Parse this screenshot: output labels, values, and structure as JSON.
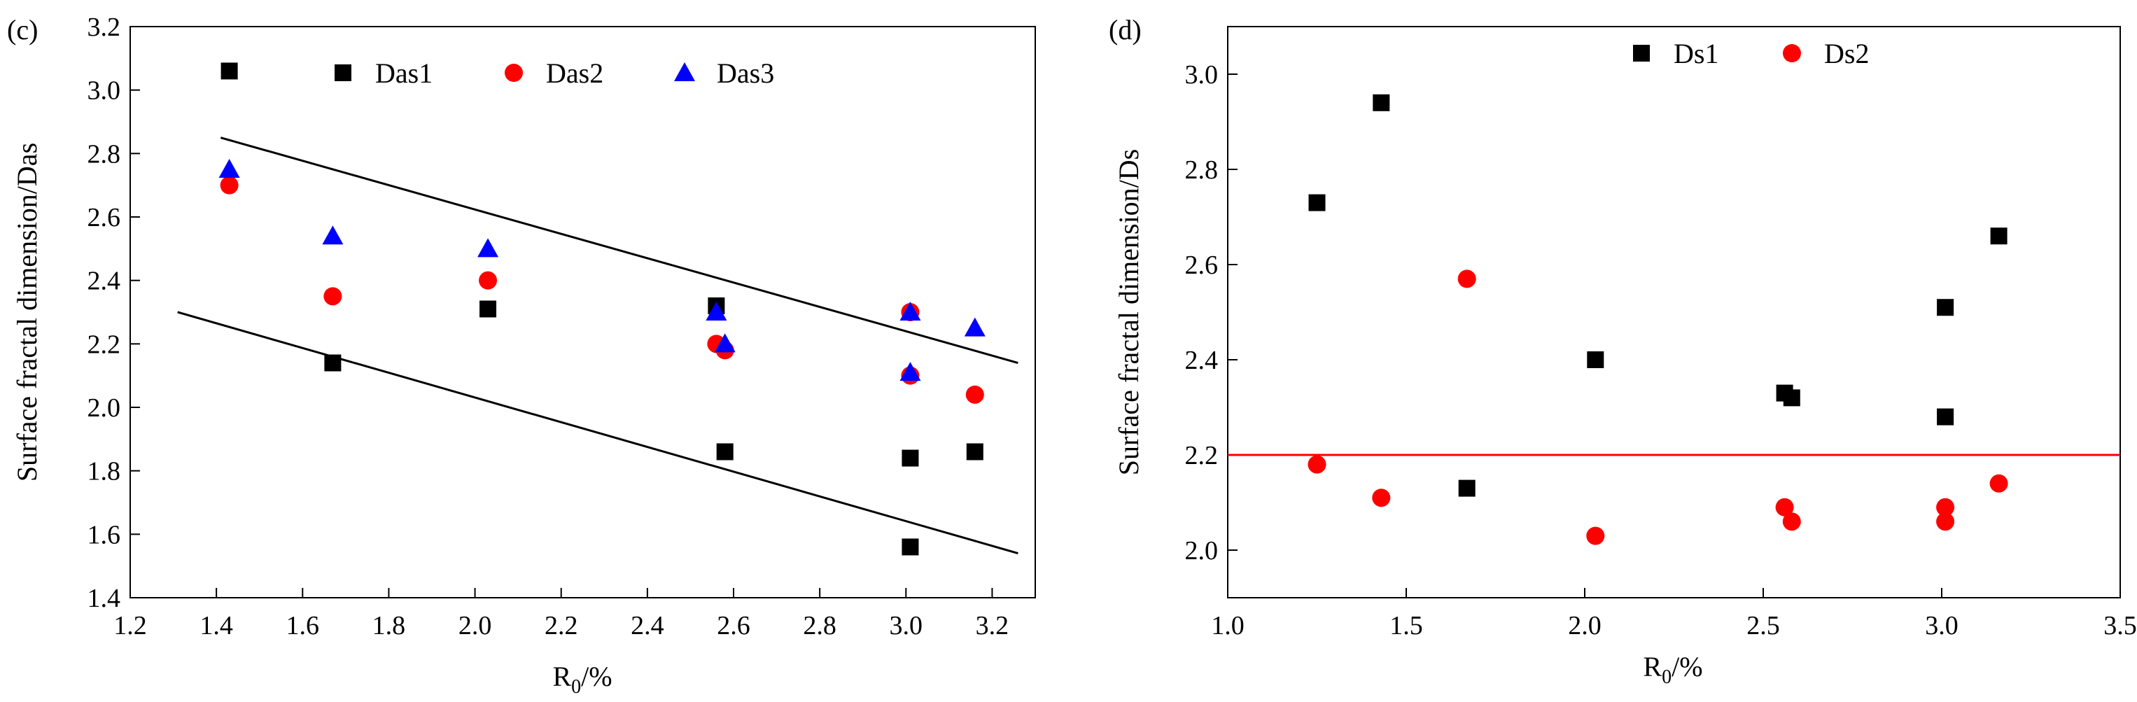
{
  "chart_data": [
    {
      "panel_label": "(c)",
      "type": "scatter",
      "title": "",
      "xlabel": "R0/%",
      "ylabel": "Surface fractal dimension/Das",
      "xlim": [
        1.2,
        3.3
      ],
      "ylim": [
        1.4,
        3.2
      ],
      "x_ticks": [
        1.2,
        1.4,
        1.6,
        1.8,
        2.0,
        2.2,
        2.4,
        2.6,
        2.8,
        3.0,
        3.2
      ],
      "y_ticks": [
        1.4,
        1.6,
        1.8,
        2.0,
        2.2,
        2.4,
        2.6,
        2.8,
        3.0,
        3.2
      ],
      "legend_position": "top",
      "series": [
        {
          "name": "Das1",
          "marker": "square",
          "color": "#000000",
          "x": [
            1.43,
            1.67,
            2.03,
            2.56,
            2.58,
            3.01,
            3.01,
            3.16
          ],
          "y": [
            3.06,
            2.14,
            2.31,
            2.32,
            1.86,
            1.84,
            1.56,
            1.86
          ]
        },
        {
          "name": "Das2",
          "marker": "circle",
          "color": "#ff0000",
          "x": [
            1.43,
            1.67,
            2.03,
            2.56,
            2.58,
            3.01,
            3.01,
            3.16
          ],
          "y": [
            2.7,
            2.35,
            2.4,
            2.2,
            2.18,
            2.3,
            2.1,
            2.04
          ]
        },
        {
          "name": "Das3",
          "marker": "triangle",
          "color": "#0000ff",
          "x": [
            1.43,
            1.67,
            2.03,
            2.56,
            2.58,
            3.01,
            3.01,
            3.16
          ],
          "y": [
            2.75,
            2.54,
            2.5,
            2.3,
            2.2,
            2.3,
            2.11,
            2.25
          ]
        }
      ],
      "lines": [
        {
          "name": "upper-bound",
          "color": "#000000",
          "x": [
            1.41,
            3.26
          ],
          "y": [
            2.85,
            2.14
          ]
        },
        {
          "name": "lower-bound",
          "color": "#000000",
          "x": [
            1.31,
            3.26
          ],
          "y": [
            2.3,
            1.54
          ]
        }
      ]
    },
    {
      "panel_label": "(d)",
      "type": "scatter",
      "title": "",
      "xlabel": "R0/%",
      "ylabel": "Surface fractal dimension/Ds",
      "xlim": [
        1.0,
        3.5
      ],
      "ylim": [
        1.9,
        3.1
      ],
      "x_ticks": [
        1.0,
        1.5,
        2.0,
        2.5,
        3.0,
        3.5
      ],
      "y_ticks": [
        2.0,
        2.2,
        2.4,
        2.6,
        2.8,
        3.0
      ],
      "legend_position": "top",
      "series": [
        {
          "name": "Ds1",
          "marker": "square",
          "color": "#000000",
          "x": [
            1.25,
            1.43,
            1.67,
            2.03,
            2.56,
            2.58,
            3.01,
            3.01,
            3.16
          ],
          "y": [
            2.73,
            2.94,
            2.13,
            2.4,
            2.33,
            2.32,
            2.51,
            2.28,
            2.66
          ]
        },
        {
          "name": "Ds2",
          "marker": "circle",
          "color": "#ff0000",
          "x": [
            1.25,
            1.43,
            1.67,
            2.03,
            2.56,
            2.58,
            3.01,
            3.01,
            3.16
          ],
          "y": [
            2.18,
            2.11,
            2.57,
            2.03,
            2.09,
            2.06,
            2.09,
            2.06,
            2.14
          ]
        }
      ],
      "lines": [
        {
          "name": "threshold-line",
          "color": "#ff0000",
          "x": [
            1.0,
            3.5
          ],
          "y": [
            2.2,
            2.2
          ]
        }
      ]
    }
  ]
}
